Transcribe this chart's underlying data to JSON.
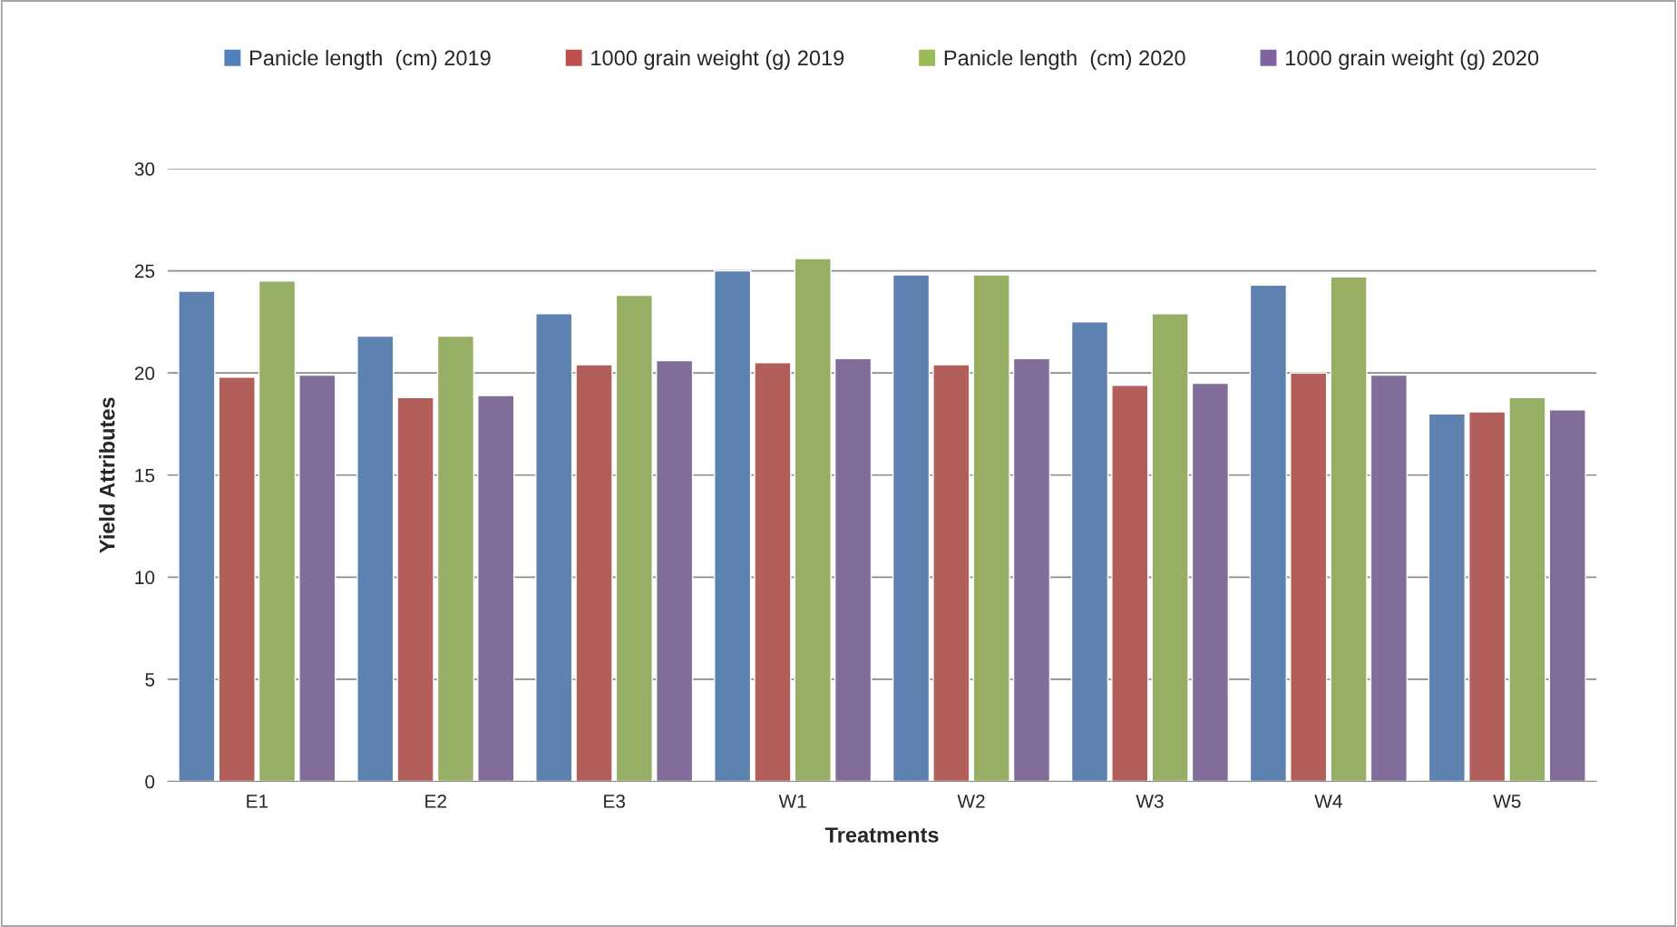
{
  "chart_data": {
    "type": "bar",
    "xlabel": "Treatments",
    "ylabel": "Yield Attributes",
    "categories": [
      "E1",
      "E2",
      "E3",
      "W1",
      "W2",
      "W3",
      "W4",
      "W5"
    ],
    "series": [
      {
        "name": "Panicle length  (cm) 2019",
        "color": "#4f81bd",
        "values": [
          24.0,
          21.8,
          22.9,
          25.0,
          24.8,
          22.5,
          24.3,
          18.0
        ]
      },
      {
        "name": "1000 grain weight (g) 2019",
        "color": "#c0504d",
        "values": [
          19.8,
          18.8,
          20.4,
          20.5,
          20.4,
          19.4,
          20.0,
          18.1
        ]
      },
      {
        "name": "Panicle length  (cm) 2020",
        "color": "#9bbb59",
        "values": [
          24.5,
          21.8,
          23.8,
          25.6,
          24.8,
          22.9,
          24.7,
          18.8
        ]
      },
      {
        "name": "1000 grain weight (g) 2020",
        "color": "#8064a2",
        "values": [
          19.9,
          18.9,
          20.6,
          20.7,
          20.7,
          19.5,
          19.9,
          18.2
        ]
      }
    ],
    "ylim": [
      0,
      30
    ],
    "yticks": [
      0,
      5,
      10,
      15,
      20,
      25,
      30
    ],
    "grid": "y",
    "legend": "top"
  }
}
